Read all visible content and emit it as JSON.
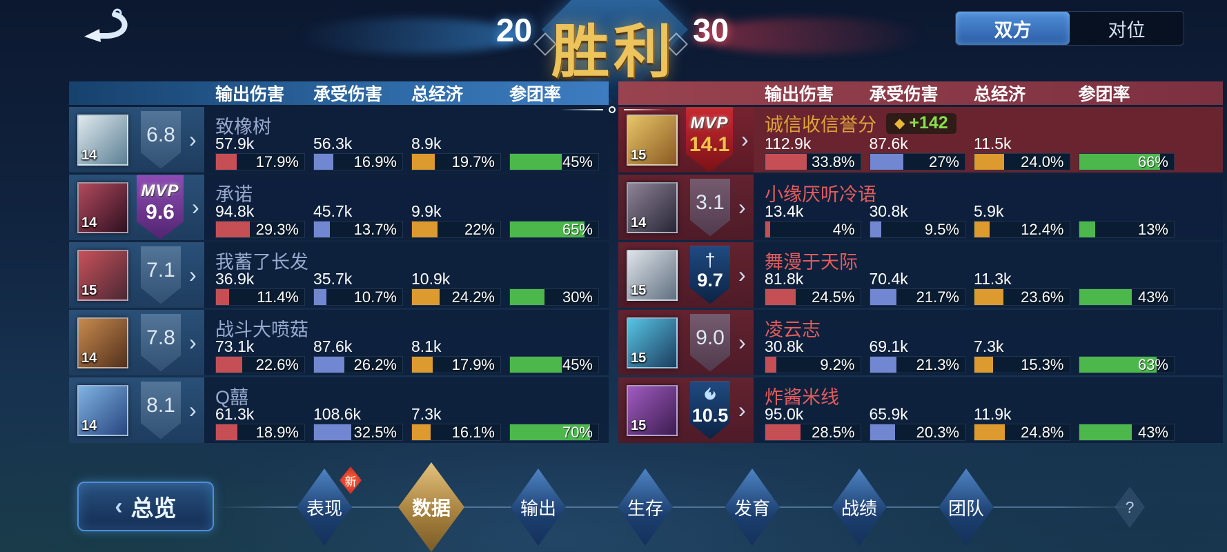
{
  "header": {
    "title": "胜利",
    "left_score": "20",
    "right_score": "30",
    "tabs": [
      {
        "label": "双方",
        "active": true
      },
      {
        "label": "对位",
        "active": false
      }
    ]
  },
  "columns": [
    "输出伤害",
    "承受伤害",
    "总经济",
    "参团率"
  ],
  "colors": {
    "damage_bar": "#c64f56",
    "taken_bar": "#7287d2",
    "economy_bar": "#dd9b2f",
    "participation_bar": "#4cb84c",
    "blue_team_header": "#2e6aa6",
    "red_team_header": "#7c3040",
    "mvp_red_ribbon": "#c62a30",
    "mvp_purple_ribbon": "#8d4cb4",
    "gold_name": "#e0a339",
    "red_name": "#e25c5c",
    "blue_name": "#97a9cd",
    "credit_green": "#8ade4a"
  },
  "icons": {
    "chevron": "›",
    "back_chevron": "‹",
    "credit": "◆",
    "sword": "†",
    "help": "?"
  },
  "labels": {
    "mvp": "MVP"
  },
  "left_table": {
    "rows": [
      {
        "level": "14",
        "rating": "6.8",
        "name": "致橡树",
        "avatar_colors": [
          "#dfe9ec",
          "#5b7f95"
        ],
        "stats": [
          {
            "value": "57.9k",
            "pct": "17.9%"
          },
          {
            "value": "56.3k",
            "pct": "16.9%"
          },
          {
            "value": "8.9k",
            "pct": "19.7%"
          },
          {
            "pct": "45%"
          }
        ]
      },
      {
        "level": "14",
        "rating": "9.6",
        "name": "承诺",
        "avatar_colors": [
          "#b24a5e",
          "#2e1020"
        ],
        "stats": [
          {
            "value": "94.8k",
            "pct": "29.3%"
          },
          {
            "value": "45.7k",
            "pct": "13.7%"
          },
          {
            "value": "9.9k",
            "pct": "22%"
          },
          {
            "pct": "65%"
          }
        ]
      },
      {
        "level": "15",
        "rating": "7.1",
        "name": "我蓄了长发",
        "avatar_colors": [
          "#c8515a",
          "#4a2834"
        ],
        "stats": [
          {
            "value": "36.9k",
            "pct": "11.4%"
          },
          {
            "value": "35.7k",
            "pct": "10.7%"
          },
          {
            "value": "10.9k",
            "pct": "24.2%"
          },
          {
            "pct": "30%"
          }
        ]
      },
      {
        "level": "14",
        "rating": "7.8",
        "name": "战斗大喷菇",
        "avatar_colors": [
          "#c78a4e",
          "#52301c"
        ],
        "stats": [
          {
            "value": "73.1k",
            "pct": "22.6%"
          },
          {
            "value": "87.6k",
            "pct": "26.2%"
          },
          {
            "value": "8.1k",
            "pct": "17.9%"
          },
          {
            "pct": "45%"
          }
        ]
      },
      {
        "level": "14",
        "rating": "8.1",
        "name": "Q囍",
        "avatar_colors": [
          "#7fb3e2",
          "#27457f"
        ],
        "stats": [
          {
            "value": "61.3k",
            "pct": "18.9%"
          },
          {
            "value": "108.6k",
            "pct": "32.5%"
          },
          {
            "value": "7.3k",
            "pct": "16.1%"
          },
          {
            "pct": "70%"
          }
        ]
      }
    ]
  },
  "right_table": {
    "rows": [
      {
        "level": "15",
        "rating": "14.1",
        "name": "诚信收信誉分",
        "credit_bonus": "+142",
        "avatar_colors": [
          "#e7c568",
          "#8a5a22"
        ],
        "stats": [
          {
            "value": "112.9k",
            "pct": "33.8%"
          },
          {
            "value": "87.6k",
            "pct": "27%"
          },
          {
            "value": "11.5k",
            "pct": "24.0%"
          },
          {
            "pct": "66%"
          }
        ]
      },
      {
        "level": "14",
        "rating": "3.1",
        "name": "小缘厌听冷语",
        "avatar_colors": [
          "#8f8396",
          "#262635"
        ],
        "stats": [
          {
            "value": "13.4k",
            "pct": "4%"
          },
          {
            "value": "30.8k",
            "pct": "9.5%"
          },
          {
            "value": "5.9k",
            "pct": "12.4%"
          },
          {
            "pct": "13%"
          }
        ]
      },
      {
        "level": "15",
        "rating": "9.7",
        "name": "舞漫于天际",
        "avatar_colors": [
          "#dfe3e8",
          "#5f6f80"
        ],
        "stats": [
          {
            "value": "81.8k",
            "pct": "24.5%"
          },
          {
            "value": "70.4k",
            "pct": "21.7%"
          },
          {
            "value": "11.3k",
            "pct": "23.6%"
          },
          {
            "pct": "43%"
          }
        ]
      },
      {
        "level": "15",
        "rating": "9.0",
        "name": "凌云志",
        "avatar_colors": [
          "#57c4e4",
          "#1c3c5e"
        ],
        "stats": [
          {
            "value": "30.8k",
            "pct": "9.2%"
          },
          {
            "value": "69.1k",
            "pct": "21.3%"
          },
          {
            "value": "7.3k",
            "pct": "15.3%"
          },
          {
            "pct": "63%"
          }
        ]
      },
      {
        "level": "15",
        "rating": "10.5",
        "name": "炸酱米线",
        "avatar_colors": [
          "#a05cc0",
          "#3c1c50"
        ],
        "stats": [
          {
            "value": "95.0k",
            "pct": "28.5%"
          },
          {
            "value": "65.9k",
            "pct": "20.3%"
          },
          {
            "value": "11.9k",
            "pct": "24.8%"
          },
          {
            "pct": "43%"
          }
        ]
      }
    ]
  },
  "bottom_nav": {
    "overview_label": "总览",
    "new_badge": "新",
    "tabs": [
      {
        "label": "表现",
        "active": false,
        "new": true
      },
      {
        "label": "数据",
        "active": true
      },
      {
        "label": "输出",
        "active": false
      },
      {
        "label": "生存",
        "active": false
      },
      {
        "label": "发育",
        "active": false
      },
      {
        "label": "战绩",
        "active": false
      },
      {
        "label": "团队",
        "active": false
      }
    ]
  }
}
